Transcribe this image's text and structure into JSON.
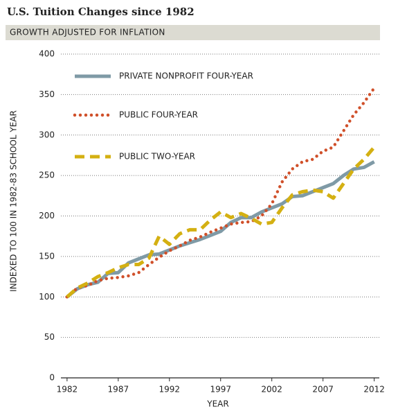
{
  "chart_data": {
    "type": "line",
    "title": "U.S. Tuition Changes since 1982",
    "subtitle": "GROWTH ADJUSTED FOR INFLATION",
    "x_label": "YEAR",
    "y_label": "INDEXED TO 100 IN 1982-83 SCHOOL YEAR",
    "x": [
      1982,
      1983,
      1984,
      1985,
      1986,
      1987,
      1988,
      1989,
      1990,
      1991,
      1992,
      1993,
      1994,
      1995,
      1996,
      1997,
      1998,
      1999,
      2000,
      2001,
      2002,
      2003,
      2004,
      2005,
      2006,
      2007,
      2008,
      2009,
      2010,
      2011,
      2012
    ],
    "series": [
      {
        "name": "PRIVATE NONPROFIT FOUR-YEAR",
        "color": "#7f9aa6",
        "style": "solid",
        "values": [
          100,
          110,
          115,
          118,
          129,
          130,
          142,
          147,
          152,
          153,
          158,
          163,
          167,
          171,
          176,
          181,
          192,
          198,
          198,
          205,
          210,
          215,
          224,
          225,
          230,
          235,
          240,
          250,
          258,
          260,
          267
        ]
      },
      {
        "name": "PUBLIC FOUR-YEAR",
        "color": "#d0502a",
        "style": "dotted",
        "values": [
          100,
          111,
          114,
          120,
          123,
          124,
          126,
          130,
          140,
          149,
          157,
          163,
          170,
          174,
          180,
          185,
          190,
          192,
          193,
          200,
          215,
          242,
          258,
          267,
          270,
          280,
          285,
          305,
          325,
          340,
          358
        ]
      },
      {
        "name": "PUBLIC TWO-YEAR",
        "color": "#d4b012",
        "style": "dashed",
        "values": [
          100,
          111,
          117,
          125,
          130,
          136,
          140,
          140,
          148,
          175,
          165,
          178,
          183,
          183,
          195,
          205,
          198,
          203,
          197,
          190,
          192,
          210,
          226,
          230,
          232,
          230,
          222,
          240,
          258,
          270,
          285
        ]
      }
    ],
    "xlim": [
      1981.4,
      2012.5
    ],
    "xticks": [
      1982,
      1987,
      1992,
      1997,
      2002,
      2007,
      2012
    ],
    "ylim": [
      0,
      400
    ],
    "yticks": [
      0,
      50,
      100,
      150,
      200,
      250,
      300,
      350,
      400
    ],
    "grid": true,
    "legend": "top-left"
  }
}
